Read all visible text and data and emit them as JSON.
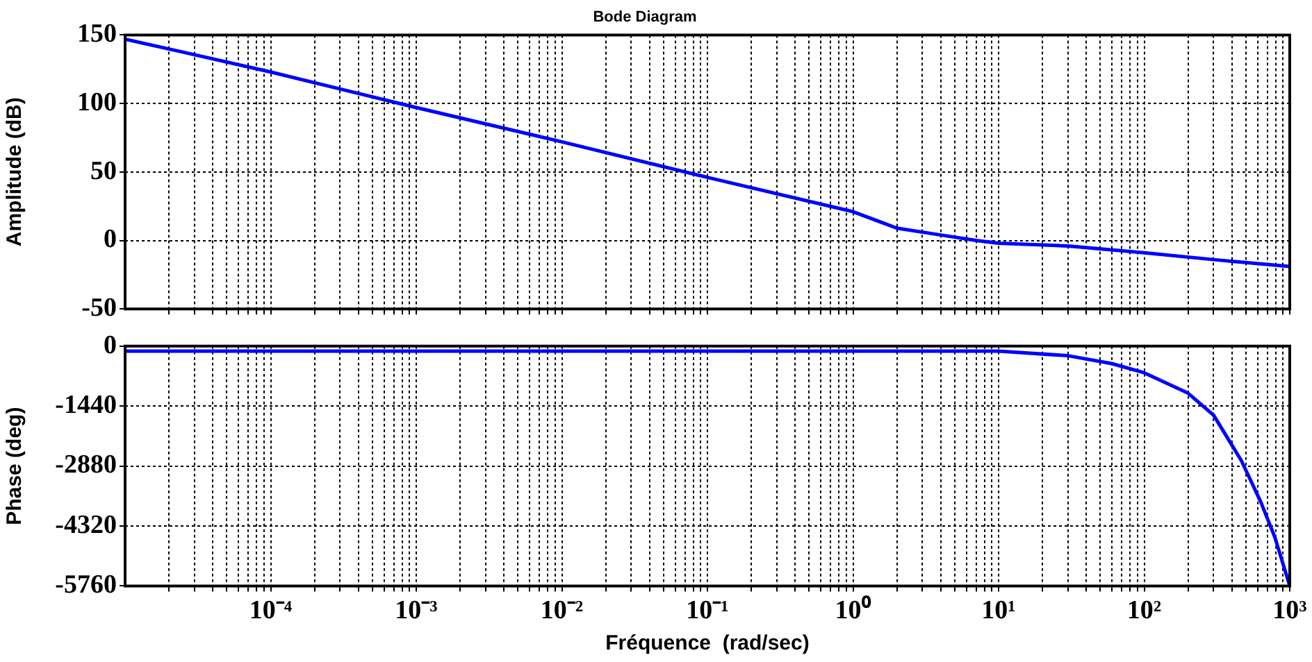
{
  "chart_data": [
    {
      "type": "line",
      "title": "Bode Diagram",
      "ylabel": "Amplitude (dB)",
      "log": "x",
      "grid": true,
      "marker": "none",
      "tick_labels": "y",
      "x": [
        1e-05,
        0.0001,
        0.001,
        0.01,
        0.1,
        1,
        2,
        4,
        7,
        10,
        30,
        100,
        300,
        1000
      ],
      "series": [
        {
          "color": "#0000ff",
          "values": [
            147,
            123,
            97,
            72,
            46,
            21,
            9,
            4,
            0,
            -2,
            -4,
            -9,
            -14,
            -19
          ]
        }
      ],
      "xlim": [
        1e-05,
        1000
      ],
      "xticks": [
        {
          "value": 2e-05,
          "label": null
        },
        {
          "value": 3e-05,
          "label": null
        },
        {
          "value": 4e-05,
          "label": null
        },
        {
          "value": 5e-05,
          "label": null
        },
        {
          "value": 6e-05,
          "label": null
        },
        {
          "value": 7e-05,
          "label": null
        },
        {
          "value": 8e-05,
          "label": null
        },
        {
          "value": 9e-05,
          "label": null
        },
        {
          "value": 0.0001,
          "label": null
        },
        {
          "value": 0.0002,
          "label": null
        },
        {
          "value": 0.0003,
          "label": null
        },
        {
          "value": 0.0004,
          "label": null
        },
        {
          "value": 0.0005,
          "label": null
        },
        {
          "value": 0.0006,
          "label": null
        },
        {
          "value": 0.0007,
          "label": null
        },
        {
          "value": 0.0008,
          "label": null
        },
        {
          "value": 0.0009,
          "label": null
        },
        {
          "value": 0.001,
          "label": null
        },
        {
          "value": 0.002,
          "label": null
        },
        {
          "value": 0.003,
          "label": null
        },
        {
          "value": 0.004,
          "label": null
        },
        {
          "value": 0.005,
          "label": null
        },
        {
          "value": 0.006,
          "label": null
        },
        {
          "value": 0.007,
          "label": null
        },
        {
          "value": 0.008,
          "label": null
        },
        {
          "value": 0.009,
          "label": null
        },
        {
          "value": 0.01,
          "label": null
        },
        {
          "value": 0.02,
          "label": null
        },
        {
          "value": 0.03,
          "label": null
        },
        {
          "value": 0.04,
          "label": null
        },
        {
          "value": 0.05,
          "label": null
        },
        {
          "value": 0.06,
          "label": null
        },
        {
          "value": 0.07,
          "label": null
        },
        {
          "value": 0.08,
          "label": null
        },
        {
          "value": 0.09,
          "label": null
        },
        {
          "value": 0.1,
          "label": null
        },
        {
          "value": 0.2,
          "label": null
        },
        {
          "value": 0.3,
          "label": null
        },
        {
          "value": 0.4,
          "label": null
        },
        {
          "value": 0.5,
          "label": null
        },
        {
          "value": 0.6,
          "label": null
        },
        {
          "value": 0.7,
          "label": null
        },
        {
          "value": 0.8,
          "label": null
        },
        {
          "value": 0.9,
          "label": null
        },
        {
          "value": 1,
          "label": null
        },
        {
          "value": 2,
          "label": null
        },
        {
          "value": 3,
          "label": null
        },
        {
          "value": 4,
          "label": null
        },
        {
          "value": 5,
          "label": null
        },
        {
          "value": 6,
          "label": null
        },
        {
          "value": 7,
          "label": null
        },
        {
          "value": 8,
          "label": null
        },
        {
          "value": 9,
          "label": null
        },
        {
          "value": 10,
          "label": null
        },
        {
          "value": 20,
          "label": null
        },
        {
          "value": 30,
          "label": null
        },
        {
          "value": 40,
          "label": null
        },
        {
          "value": 50,
          "label": null
        },
        {
          "value": 60,
          "label": null
        },
        {
          "value": 70,
          "label": null
        },
        {
          "value": 80,
          "label": null
        },
        {
          "value": 90,
          "label": null
        },
        {
          "value": 100,
          "label": null
        },
        {
          "value": 200,
          "label": null
        },
        {
          "value": 300,
          "label": null
        },
        {
          "value": 400,
          "label": null
        },
        {
          "value": 500,
          "label": null
        },
        {
          "value": 600,
          "label": null
        },
        {
          "value": 700,
          "label": null
        },
        {
          "value": 800,
          "label": null
        },
        {
          "value": 900,
          "label": null
        },
        {
          "value": 1000,
          "label": null
        }
      ],
      "ylim": [
        -50,
        150
      ],
      "yticks": [
        -50,
        0,
        50,
        100,
        150
      ]
    },
    {
      "type": "line",
      "xlabel": "Fréquence  (rad/sec)",
      "ylabel": "Phase (deg)",
      "log": "x",
      "grid": true,
      "marker": "none",
      "x": [
        1e-05,
        1,
        10,
        30,
        60,
        100,
        200,
        300,
        465,
        630,
        790,
        1000
      ],
      "series": [
        {
          "color": "#0000ff",
          "values": [
            -120,
            -120,
            -120,
            -230,
            -420,
            -640,
            -1130,
            -1660,
            -2750,
            -3730,
            -4590,
            -5760
          ]
        }
      ],
      "xlim": [
        1e-05,
        1000
      ],
      "xticks": [
        {
          "value": 2e-05,
          "label": null
        },
        {
          "value": 3e-05,
          "label": null
        },
        {
          "value": 4e-05,
          "label": null
        },
        {
          "value": 5e-05,
          "label": null
        },
        {
          "value": 6e-05,
          "label": null
        },
        {
          "value": 7e-05,
          "label": null
        },
        {
          "value": 8e-05,
          "label": null
        },
        {
          "value": 9e-05,
          "label": null
        },
        {
          "value": 0.0001,
          "label": "10⁻⁴"
        },
        {
          "value": 0.0002,
          "label": null
        },
        {
          "value": 0.0003,
          "label": null
        },
        {
          "value": 0.0004,
          "label": null
        },
        {
          "value": 0.0005,
          "label": null
        },
        {
          "value": 0.0006,
          "label": null
        },
        {
          "value": 0.0007,
          "label": null
        },
        {
          "value": 0.0008,
          "label": null
        },
        {
          "value": 0.0009,
          "label": null
        },
        {
          "value": 0.001,
          "label": "10⁻³"
        },
        {
          "value": 0.002,
          "label": null
        },
        {
          "value": 0.003,
          "label": null
        },
        {
          "value": 0.004,
          "label": null
        },
        {
          "value": 0.005,
          "label": null
        },
        {
          "value": 0.006,
          "label": null
        },
        {
          "value": 0.007,
          "label": null
        },
        {
          "value": 0.008,
          "label": null
        },
        {
          "value": 0.009,
          "label": null
        },
        {
          "value": 0.01,
          "label": "10⁻²"
        },
        {
          "value": 0.02,
          "label": null
        },
        {
          "value": 0.03,
          "label": null
        },
        {
          "value": 0.04,
          "label": null
        },
        {
          "value": 0.05,
          "label": null
        },
        {
          "value": 0.06,
          "label": null
        },
        {
          "value": 0.07,
          "label": null
        },
        {
          "value": 0.08,
          "label": null
        },
        {
          "value": 0.09,
          "label": null
        },
        {
          "value": 0.1,
          "label": "10⁻¹"
        },
        {
          "value": 0.2,
          "label": null
        },
        {
          "value": 0.3,
          "label": null
        },
        {
          "value": 0.4,
          "label": null
        },
        {
          "value": 0.5,
          "label": null
        },
        {
          "value": 0.6,
          "label": null
        },
        {
          "value": 0.7,
          "label": null
        },
        {
          "value": 0.8,
          "label": null
        },
        {
          "value": 0.9,
          "label": null
        },
        {
          "value": 1,
          "label": "10⁰"
        },
        {
          "value": 2,
          "label": null
        },
        {
          "value": 3,
          "label": null
        },
        {
          "value": 4,
          "label": null
        },
        {
          "value": 5,
          "label": null
        },
        {
          "value": 6,
          "label": null
        },
        {
          "value": 7,
          "label": null
        },
        {
          "value": 8,
          "label": null
        },
        {
          "value": 9,
          "label": null
        },
        {
          "value": 10,
          "label": "10¹"
        },
        {
          "value": 20,
          "label": null
        },
        {
          "value": 30,
          "label": null
        },
        {
          "value": 40,
          "label": null
        },
        {
          "value": 50,
          "label": null
        },
        {
          "value": 60,
          "label": null
        },
        {
          "value": 70,
          "label": null
        },
        {
          "value": 80,
          "label": null
        },
        {
          "value": 90,
          "label": null
        },
        {
          "value": 100,
          "label": "10²"
        },
        {
          "value": 200,
          "label": null
        },
        {
          "value": 300,
          "label": null
        },
        {
          "value": 400,
          "label": null
        },
        {
          "value": 500,
          "label": null
        },
        {
          "value": 600,
          "label": null
        },
        {
          "value": 700,
          "label": null
        },
        {
          "value": 800,
          "label": null
        },
        {
          "value": 900,
          "label": null
        },
        {
          "value": 1000,
          "label": "10³"
        }
      ],
      "ylim": [
        -5760,
        0
      ],
      "yticks": [
        -5760,
        -4320,
        -2880,
        -1440,
        0
      ]
    }
  ]
}
